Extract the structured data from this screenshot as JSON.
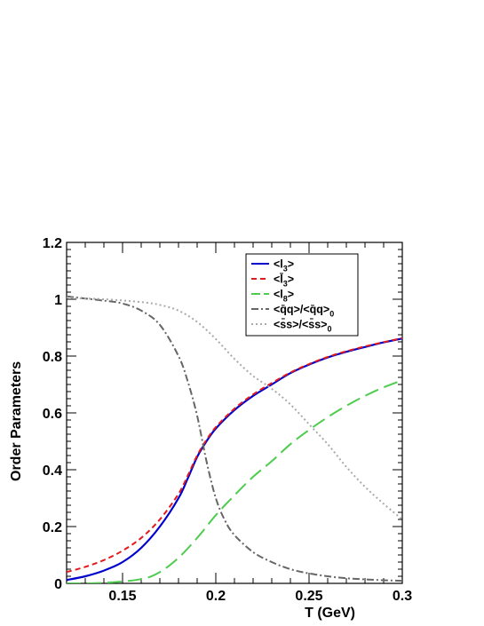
{
  "chart_data": {
    "type": "line",
    "title": "",
    "xlabel": "T (GeV)",
    "ylabel": "Order Parameters",
    "xlim": [
      0.12,
      0.3
    ],
    "ylim": [
      0,
      1.2
    ],
    "xticks": [
      0.15,
      0.2,
      0.25,
      0.3
    ],
    "xtick_labels": [
      "0.15",
      "0.2",
      "0.25",
      "0.3"
    ],
    "yticks": [
      0,
      0.2,
      0.4,
      0.6,
      0.8,
      1.0,
      1.2
    ],
    "ytick_labels": [
      "0",
      "0.2",
      "0.4",
      "0.6",
      "0.8",
      "1",
      "1.2"
    ],
    "grid": false,
    "legend_position": "top-right",
    "series": [
      {
        "name": "<l3>",
        "color": "#0000cc",
        "style": "solid",
        "x": [
          0.12,
          0.13,
          0.14,
          0.15,
          0.16,
          0.17,
          0.18,
          0.185,
          0.19,
          0.195,
          0.2,
          0.21,
          0.22,
          0.23,
          0.24,
          0.25,
          0.26,
          0.27,
          0.28,
          0.29,
          0.3
        ],
        "y": [
          0.012,
          0.025,
          0.045,
          0.075,
          0.125,
          0.2,
          0.3,
          0.37,
          0.445,
          0.5,
          0.545,
          0.61,
          0.66,
          0.7,
          0.74,
          0.77,
          0.795,
          0.815,
          0.832,
          0.848,
          0.862
        ]
      },
      {
        "name": "<l̄3>",
        "color": "#e31a1c",
        "style": "dashed",
        "x": [
          0.12,
          0.13,
          0.14,
          0.15,
          0.16,
          0.17,
          0.18,
          0.185,
          0.19,
          0.195,
          0.2,
          0.21,
          0.22,
          0.23,
          0.24,
          0.25,
          0.26,
          0.27,
          0.28,
          0.29,
          0.3
        ],
        "y": [
          0.04,
          0.058,
          0.082,
          0.115,
          0.16,
          0.225,
          0.315,
          0.38,
          0.45,
          0.505,
          0.55,
          0.615,
          0.665,
          0.705,
          0.742,
          0.772,
          0.797,
          0.817,
          0.834,
          0.849,
          0.863
        ]
      },
      {
        "name": "<l8>",
        "color": "#4dcc4d",
        "style": "longdash",
        "x": [
          0.12,
          0.14,
          0.16,
          0.17,
          0.18,
          0.19,
          0.2,
          0.21,
          0.22,
          0.23,
          0.24,
          0.25,
          0.26,
          0.27,
          0.28,
          0.29,
          0.3
        ],
        "y": [
          0.0,
          0.002,
          0.015,
          0.04,
          0.09,
          0.16,
          0.24,
          0.31,
          0.375,
          0.43,
          0.49,
          0.54,
          0.585,
          0.625,
          0.66,
          0.69,
          0.715
        ]
      },
      {
        "name": "<q̄q>/<q̄q>0",
        "color": "#666666",
        "style": "dashdot",
        "x": [
          0.12,
          0.14,
          0.15,
          0.16,
          0.17,
          0.18,
          0.185,
          0.19,
          0.195,
          0.2,
          0.205,
          0.21,
          0.22,
          0.23,
          0.24,
          0.25,
          0.26,
          0.27,
          0.28,
          0.29,
          0.3
        ],
        "y": [
          1.01,
          0.995,
          0.985,
          0.96,
          0.91,
          0.8,
          0.71,
          0.59,
          0.43,
          0.3,
          0.22,
          0.17,
          0.11,
          0.075,
          0.05,
          0.035,
          0.025,
          0.018,
          0.014,
          0.011,
          0.009
        ]
      },
      {
        "name": "<s̄s>/<s̄s>0",
        "color": "#aaaaaa",
        "style": "dotted",
        "x": [
          0.12,
          0.14,
          0.16,
          0.17,
          0.18,
          0.19,
          0.2,
          0.21,
          0.22,
          0.23,
          0.24,
          0.25,
          0.26,
          0.27,
          0.28,
          0.29,
          0.3
        ],
        "y": [
          1.005,
          1.0,
          0.99,
          0.98,
          0.96,
          0.92,
          0.86,
          0.79,
          0.73,
          0.685,
          0.63,
          0.56,
          0.49,
          0.41,
          0.34,
          0.28,
          0.225
        ]
      }
    ]
  },
  "legend": {
    "entries": [
      {
        "base": "<l",
        "sub": "3",
        "tail": ">"
      },
      {
        "base": "<l̄",
        "sub": "3",
        "tail": ">"
      },
      {
        "base": "<l",
        "sub": "8",
        "tail": ">"
      },
      {
        "base": "<q̄q>/<q̄q>",
        "sub": "0",
        "tail": ""
      },
      {
        "base": "<s̄s>/<s̄s>",
        "sub": "0",
        "tail": ""
      }
    ]
  }
}
